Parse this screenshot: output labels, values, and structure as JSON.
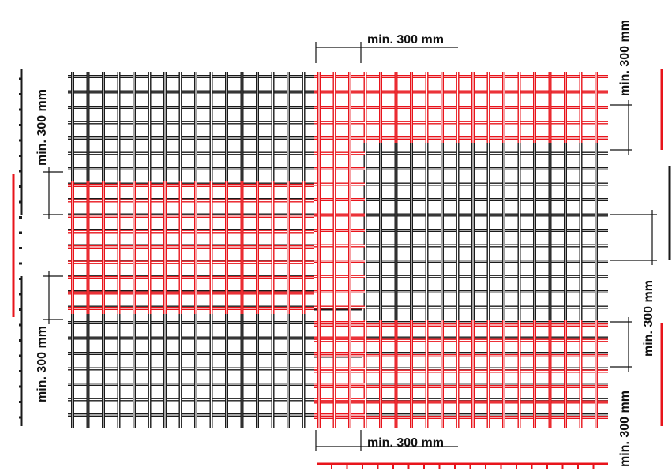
{
  "colors": {
    "black_mesh": "#1a1a1a",
    "red_mesh": "#e8141b",
    "background": "#ffffff",
    "dimension_line": "#111111"
  },
  "dimensions": {
    "top": "min. 300 mm",
    "bottom": "min. 300 mm",
    "left_upper": "min. 300 mm",
    "left_lower": "min. 300 mm",
    "right_top": "min. 300 mm",
    "right_middle": "min. 300 mm",
    "right_bottom": "min. 300 mm"
  }
}
